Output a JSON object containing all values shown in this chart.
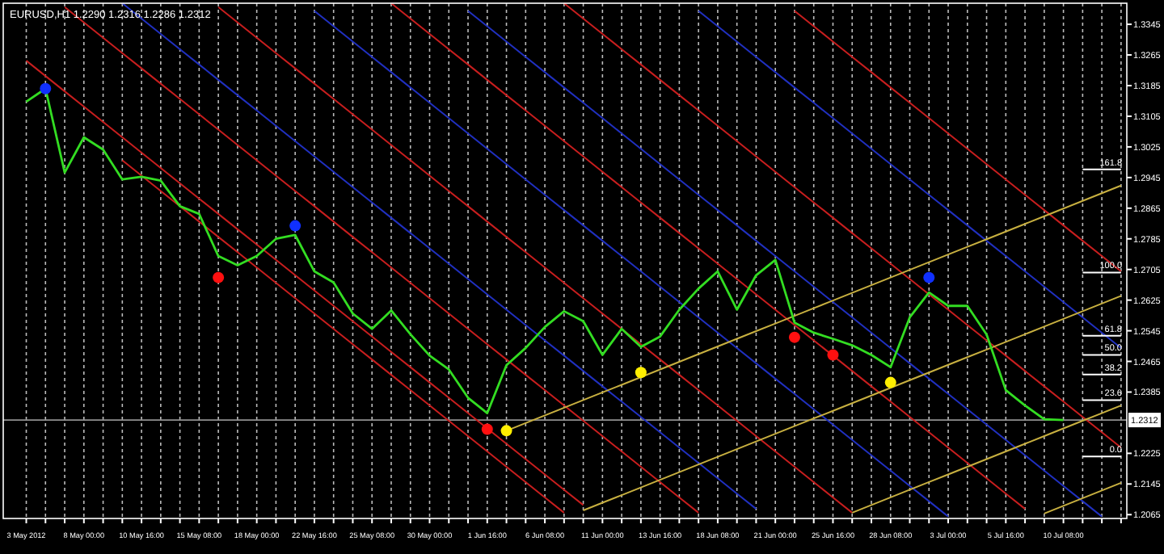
{
  "chart_data": {
    "type": "line",
    "title": "EURUSD,H1  1.2290 1.2316 1.2286 1.2312",
    "ylim": [
      1.2055,
      1.34
    ],
    "categories": [
      "3 May 2012",
      null,
      null,
      "8 May 00:00",
      null,
      null,
      "10 May 16:00",
      null,
      null,
      "15 May 08:00",
      null,
      null,
      "18 May 00:00",
      null,
      null,
      "22 May 16:00",
      null,
      null,
      "25 May 08:00",
      null,
      null,
      "30 May 00:00",
      null,
      null,
      "1 Jun 16:00",
      null,
      null,
      "6 Jun 08:00",
      null,
      null,
      "11 Jun 00:00",
      null,
      null,
      "13 Jun 16:00",
      null,
      null,
      "18 Jun 08:00",
      null,
      null,
      "21 Jun 00:00",
      null,
      null,
      "25 Jun 16:00",
      null,
      null,
      "28 Jun 08:00",
      null,
      null,
      "3 Jul 00:00",
      null,
      null,
      "5 Jul 16:00",
      null,
      null,
      "10 Jul 08:00",
      null,
      null,
      null
    ],
    "yticks": [
      1.2065,
      1.2145,
      1.2225,
      1.2385,
      1.2465,
      1.2545,
      1.2625,
      1.2705,
      1.2785,
      1.2865,
      1.2945,
      1.3025,
      1.3105,
      1.3185,
      1.3265,
      1.3345
    ],
    "grid": "x",
    "series": [
      {
        "color": "#33dd22",
        "values": [
          1.3143,
          1.3177,
          1.2958,
          1.305,
          1.3018,
          1.294,
          1.2947,
          1.2937,
          1.287,
          1.285,
          1.274,
          1.2716,
          1.274,
          1.2785,
          1.2795,
          1.27,
          1.2671,
          1.259,
          1.255,
          1.2598,
          1.2536,
          1.248,
          1.2444,
          1.237,
          1.233,
          1.2455,
          1.25,
          1.2555,
          1.2596,
          1.257,
          1.2482,
          1.255,
          1.2503,
          1.253,
          1.26,
          1.2655,
          1.27,
          1.26,
          1.269,
          1.273,
          1.2566,
          1.254,
          1.2524,
          1.2507,
          1.2482,
          1.245,
          1.258,
          1.2645,
          1.261,
          1.261,
          1.2535,
          1.239,
          1.235,
          1.2314,
          1.2312,
          null,
          null,
          null
        ]
      },
      {
        "color": "#c81e1e",
        "values": [
          1.325,
          1.321,
          1.317,
          1.313,
          1.309,
          1.305,
          1.301,
          1.297,
          1.293,
          1.289,
          1.285,
          1.281,
          1.277,
          1.273,
          1.269,
          1.265,
          1.261,
          1.257,
          1.253,
          1.249,
          1.245,
          1.241,
          1.237,
          1.233,
          1.229,
          1.225,
          1.221,
          1.217,
          1.213,
          1.209,
          null,
          null,
          null,
          null,
          null,
          null,
          null,
          null,
          null,
          null,
          null,
          null,
          null,
          null,
          null,
          null,
          null,
          null,
          null,
          null,
          null,
          null,
          null,
          null,
          null,
          null,
          null,
          null
        ]
      },
      {
        "color": "#c81e1e",
        "values": [
          null,
          null,
          null,
          null,
          null,
          1.299,
          1.295,
          1.291,
          1.287,
          1.283,
          1.279,
          1.275,
          1.271,
          1.267,
          1.263,
          1.259,
          1.255,
          1.251,
          1.247,
          1.243,
          1.239,
          1.235,
          1.231,
          1.227,
          1.223,
          1.219,
          1.215,
          1.211,
          1.207,
          null,
          null,
          null,
          null,
          null,
          null,
          null,
          null,
          null,
          null,
          null,
          null,
          null,
          null,
          null,
          null,
          null,
          null,
          null,
          null,
          null,
          null,
          null,
          null,
          null,
          null,
          null,
          null,
          null
        ]
      },
      {
        "color": "#c81e1e",
        "values": [
          null,
          null,
          1.339,
          1.335,
          1.331,
          1.327,
          1.323,
          1.319,
          1.315,
          1.311,
          1.307,
          1.303,
          1.299,
          1.295,
          1.291,
          1.287,
          1.283,
          1.279,
          1.275,
          1.271,
          1.267,
          1.263,
          1.259,
          1.255,
          1.251,
          1.247,
          1.243,
          1.239,
          1.235,
          1.231,
          1.227,
          1.223,
          1.219,
          1.215,
          1.211,
          1.207,
          null,
          null,
          null,
          null,
          null,
          null,
          null,
          null,
          null,
          null,
          null,
          null,
          null,
          null,
          null,
          null,
          null,
          null,
          null,
          null,
          null,
          null
        ]
      },
      {
        "color": "#2030c0",
        "values": [
          null,
          null,
          null,
          null,
          null,
          1.34,
          1.336,
          1.332,
          1.328,
          1.324,
          1.32,
          1.316,
          1.312,
          1.308,
          1.304,
          1.3,
          1.296,
          1.292,
          1.288,
          1.284,
          1.28,
          1.276,
          1.272,
          1.268,
          1.264,
          1.26,
          1.256,
          1.252,
          1.248,
          1.244,
          1.24,
          1.236,
          1.232,
          1.228,
          1.224,
          1.22,
          1.216,
          1.212,
          1.208,
          null,
          null,
          null,
          null,
          null,
          null,
          null,
          null,
          null,
          null,
          null,
          null,
          null,
          null,
          null,
          null,
          null,
          null,
          null
        ]
      },
      {
        "color": "#c81e1e",
        "values": [
          null,
          null,
          null,
          null,
          null,
          null,
          null,
          null,
          null,
          null,
          1.339,
          1.335,
          1.331,
          1.327,
          1.323,
          1.319,
          1.315,
          1.311,
          1.307,
          1.303,
          1.299,
          1.295,
          1.291,
          1.287,
          1.283,
          1.279,
          1.275,
          1.271,
          1.267,
          1.263,
          1.259,
          1.255,
          1.251,
          1.247,
          1.243,
          1.239,
          1.235,
          1.231,
          1.227,
          1.223,
          1.219,
          1.215,
          1.211,
          1.207,
          null,
          null,
          null,
          null,
          null,
          null,
          null,
          null,
          null,
          null,
          null,
          null,
          null,
          null
        ]
      },
      {
        "color": "#2030c0",
        "values": [
          null,
          null,
          null,
          null,
          null,
          null,
          null,
          null,
          null,
          null,
          null,
          null,
          null,
          null,
          null,
          1.338,
          1.334,
          1.33,
          1.326,
          1.322,
          1.318,
          1.314,
          1.31,
          1.306,
          1.302,
          1.298,
          1.294,
          1.29,
          1.286,
          1.282,
          1.278,
          1.274,
          1.27,
          1.266,
          1.262,
          1.258,
          1.254,
          1.25,
          1.246,
          1.242,
          1.238,
          1.234,
          1.23,
          1.226,
          1.222,
          1.218,
          1.214,
          1.21,
          1.206,
          null,
          null,
          null,
          null,
          null,
          null,
          null,
          null,
          null
        ]
      },
      {
        "color": "#c81e1e",
        "values": [
          null,
          null,
          null,
          null,
          null,
          null,
          null,
          null,
          null,
          null,
          null,
          null,
          null,
          null,
          null,
          null,
          null,
          null,
          null,
          1.34,
          1.336,
          1.332,
          1.328,
          1.324,
          1.32,
          1.316,
          1.312,
          1.308,
          1.304,
          1.3,
          1.296,
          1.292,
          1.288,
          1.284,
          1.28,
          1.276,
          1.272,
          1.268,
          1.264,
          1.26,
          1.256,
          1.252,
          1.248,
          1.244,
          1.24,
          1.236,
          1.232,
          1.228,
          1.224,
          1.22,
          1.216,
          1.212,
          1.208,
          null,
          null,
          null,
          null,
          null
        ]
      },
      {
        "color": "#2030c0",
        "values": [
          null,
          null,
          null,
          null,
          null,
          null,
          null,
          null,
          null,
          null,
          null,
          null,
          null,
          null,
          null,
          null,
          null,
          null,
          null,
          null,
          null,
          null,
          null,
          1.338,
          1.334,
          1.33,
          1.326,
          1.322,
          1.318,
          1.314,
          1.31,
          1.306,
          1.302,
          1.298,
          1.294,
          1.29,
          1.286,
          1.282,
          1.278,
          1.274,
          1.27,
          1.266,
          1.262,
          1.258,
          1.254,
          1.25,
          1.246,
          1.242,
          1.238,
          1.234,
          1.23,
          1.226,
          1.222,
          1.218,
          1.214,
          1.21,
          1.206,
          null
        ]
      },
      {
        "color": "#c81e1e",
        "values": [
          null,
          null,
          null,
          null,
          null,
          null,
          null,
          null,
          null,
          null,
          null,
          null,
          null,
          null,
          null,
          null,
          null,
          null,
          null,
          null,
          null,
          null,
          null,
          null,
          null,
          null,
          null,
          null,
          1.34,
          1.336,
          1.332,
          1.328,
          1.324,
          1.32,
          1.316,
          1.312,
          1.308,
          1.304,
          1.3,
          1.296,
          1.292,
          1.288,
          1.284,
          1.28,
          1.276,
          1.272,
          1.268,
          1.264,
          1.26,
          1.256,
          1.252,
          1.248,
          1.244,
          1.24,
          1.236,
          1.232,
          1.228,
          1.224
        ]
      },
      {
        "color": "#2030c0",
        "values": [
          null,
          null,
          null,
          null,
          null,
          null,
          null,
          null,
          null,
          null,
          null,
          null,
          null,
          null,
          null,
          null,
          null,
          null,
          null,
          null,
          null,
          null,
          null,
          null,
          null,
          null,
          null,
          null,
          null,
          null,
          null,
          null,
          null,
          null,
          null,
          1.338,
          1.334,
          1.33,
          1.326,
          1.322,
          1.318,
          1.314,
          1.31,
          1.306,
          1.302,
          1.298,
          1.294,
          1.29,
          1.286,
          1.282,
          1.278,
          1.274,
          1.27,
          1.266,
          1.262,
          1.258,
          1.254,
          1.25
        ]
      },
      {
        "color": "#c81e1e",
        "values": [
          null,
          null,
          null,
          null,
          null,
          null,
          null,
          null,
          null,
          null,
          null,
          null,
          null,
          null,
          null,
          null,
          null,
          null,
          null,
          null,
          null,
          null,
          null,
          null,
          null,
          null,
          null,
          null,
          null,
          null,
          null,
          null,
          null,
          null,
          null,
          null,
          null,
          null,
          null,
          null,
          1.338,
          1.334,
          1.33,
          1.326,
          1.322,
          1.318,
          1.314,
          1.31,
          1.306,
          1.302,
          1.298,
          1.294,
          1.29,
          1.286,
          1.282,
          1.278,
          1.274,
          1.27
        ]
      },
      {
        "color": "#c8b040",
        "values": [
          null,
          null,
          null,
          null,
          null,
          null,
          null,
          null,
          null,
          null,
          null,
          null,
          null,
          null,
          null,
          null,
          null,
          null,
          null,
          null,
          null,
          null,
          null,
          null,
          null,
          1.2284,
          1.2304,
          1.2324,
          1.2344,
          1.2364,
          1.2384,
          1.2404,
          1.2424,
          1.2444,
          1.2464,
          1.2484,
          1.2504,
          1.2524,
          1.2544,
          1.2564,
          1.2584,
          1.2604,
          1.2624,
          1.2644,
          1.2664,
          1.2684,
          1.2704,
          1.2724,
          1.2744,
          1.2764,
          1.2784,
          1.2804,
          1.2824,
          1.2844,
          1.2864,
          1.2884,
          1.2904,
          1.2924
        ]
      },
      {
        "color": "#c8b040",
        "values": [
          null,
          null,
          null,
          null,
          null,
          null,
          null,
          null,
          null,
          null,
          null,
          null,
          null,
          null,
          null,
          null,
          null,
          null,
          null,
          null,
          null,
          null,
          null,
          null,
          null,
          null,
          null,
          null,
          null,
          1.2076,
          1.2096,
          1.2116,
          1.2136,
          1.2156,
          1.2176,
          1.2196,
          1.2216,
          1.2236,
          1.2256,
          1.2276,
          1.2296,
          1.2316,
          1.2336,
          1.2356,
          1.2376,
          1.2396,
          1.2416,
          1.2436,
          1.2456,
          1.2476,
          1.2496,
          1.2516,
          1.2536,
          1.2556,
          1.2576,
          1.2596,
          1.2616,
          1.2636
        ]
      },
      {
        "color": "#c8b040",
        "values": [
          null,
          null,
          null,
          null,
          null,
          null,
          null,
          null,
          null,
          null,
          null,
          null,
          null,
          null,
          null,
          null,
          null,
          null,
          null,
          null,
          null,
          null,
          null,
          null,
          null,
          null,
          null,
          null,
          null,
          null,
          null,
          null,
          null,
          null,
          null,
          null,
          null,
          null,
          null,
          null,
          null,
          null,
          null,
          1.207,
          1.209,
          1.211,
          1.213,
          1.215,
          1.217,
          1.219,
          1.221,
          1.223,
          1.225,
          1.227,
          1.229,
          1.231,
          1.233,
          1.235
        ]
      },
      {
        "color": "#c8b040",
        "values": [
          null,
          null,
          null,
          null,
          null,
          null,
          null,
          null,
          null,
          null,
          null,
          null,
          null,
          null,
          null,
          null,
          null,
          null,
          null,
          null,
          null,
          null,
          null,
          null,
          null,
          null,
          null,
          null,
          null,
          null,
          null,
          null,
          null,
          null,
          null,
          null,
          null,
          null,
          null,
          null,
          null,
          null,
          null,
          null,
          null,
          null,
          null,
          null,
          null,
          null,
          null,
          null,
          null,
          1.2068,
          1.2088,
          1.2108,
          1.2128,
          1.2148
        ]
      },
      {
        "color": "#ffffff",
        "values": [
          null,
          null,
          null,
          null,
          null,
          null,
          null,
          null,
          null,
          null,
          null,
          null,
          null,
          null,
          null,
          null,
          null,
          null,
          null,
          null,
          null,
          null,
          null,
          null,
          null,
          null,
          null,
          null,
          null,
          null,
          null,
          null,
          null,
          null,
          null,
          null,
          null,
          null,
          null,
          null,
          null,
          null,
          null,
          null,
          null,
          null,
          null,
          null,
          null,
          null,
          null,
          null,
          null,
          null,
          null,
          1.2966,
          1.2966,
          1.2966
        ]
      },
      {
        "color": "#ffffff",
        "values": [
          null,
          null,
          null,
          null,
          null,
          null,
          null,
          null,
          null,
          null,
          null,
          null,
          null,
          null,
          null,
          null,
          null,
          null,
          null,
          null,
          null,
          null,
          null,
          null,
          null,
          null,
          null,
          null,
          null,
          null,
          null,
          null,
          null,
          null,
          null,
          null,
          null,
          null,
          null,
          null,
          null,
          null,
          null,
          null,
          null,
          null,
          null,
          null,
          null,
          null,
          null,
          null,
          null,
          null,
          null,
          1.2697,
          1.2697,
          1.2697
        ]
      },
      {
        "color": "#ffffff",
        "values": [
          null,
          null,
          null,
          null,
          null,
          null,
          null,
          null,
          null,
          null,
          null,
          null,
          null,
          null,
          null,
          null,
          null,
          null,
          null,
          null,
          null,
          null,
          null,
          null,
          null,
          null,
          null,
          null,
          null,
          null,
          null,
          null,
          null,
          null,
          null,
          null,
          null,
          null,
          null,
          null,
          null,
          null,
          null,
          null,
          null,
          null,
          null,
          null,
          null,
          null,
          null,
          null,
          null,
          null,
          null,
          1.2532,
          1.2532,
          1.2532
        ]
      },
      {
        "color": "#ffffff",
        "values": [
          null,
          null,
          null,
          null,
          null,
          null,
          null,
          null,
          null,
          null,
          null,
          null,
          null,
          null,
          null,
          null,
          null,
          null,
          null,
          null,
          null,
          null,
          null,
          null,
          null,
          null,
          null,
          null,
          null,
          null,
          null,
          null,
          null,
          null,
          null,
          null,
          null,
          null,
          null,
          null,
          null,
          null,
          null,
          null,
          null,
          null,
          null,
          null,
          null,
          null,
          null,
          null,
          null,
          null,
          null,
          1.2482,
          1.2482,
          1.2482
        ]
      },
      {
        "color": "#ffffff",
        "values": [
          null,
          null,
          null,
          null,
          null,
          null,
          null,
          null,
          null,
          null,
          null,
          null,
          null,
          null,
          null,
          null,
          null,
          null,
          null,
          null,
          null,
          null,
          null,
          null,
          null,
          null,
          null,
          null,
          null,
          null,
          null,
          null,
          null,
          null,
          null,
          null,
          null,
          null,
          null,
          null,
          null,
          null,
          null,
          null,
          null,
          null,
          null,
          null,
          null,
          null,
          null,
          null,
          null,
          null,
          null,
          1.2431,
          1.2431,
          1.2431
        ]
      },
      {
        "color": "#ffffff",
        "values": [
          null,
          null,
          null,
          null,
          null,
          null,
          null,
          null,
          null,
          null,
          null,
          null,
          null,
          null,
          null,
          null,
          null,
          null,
          null,
          null,
          null,
          null,
          null,
          null,
          null,
          null,
          null,
          null,
          null,
          null,
          null,
          null,
          null,
          null,
          null,
          null,
          null,
          null,
          null,
          null,
          null,
          null,
          null,
          null,
          null,
          null,
          null,
          null,
          null,
          null,
          null,
          null,
          null,
          null,
          null,
          1.2364,
          1.2364,
          1.2364
        ]
      },
      {
        "color": "#ffffff",
        "values": [
          null,
          null,
          null,
          null,
          null,
          null,
          null,
          null,
          null,
          null,
          null,
          null,
          null,
          null,
          null,
          null,
          null,
          null,
          null,
          null,
          null,
          null,
          null,
          null,
          null,
          null,
          null,
          null,
          null,
          null,
          null,
          null,
          null,
          null,
          null,
          null,
          null,
          null,
          null,
          null,
          null,
          null,
          null,
          null,
          null,
          null,
          null,
          null,
          null,
          null,
          null,
          null,
          null,
          null,
          null,
          1.2217,
          1.2217,
          1.2217
        ]
      },
      {
        "type": "scatter",
        "marker": "circle",
        "color": "#1030ff",
        "values": [
          null,
          1.3177,
          null,
          null,
          null,
          null,
          null,
          null,
          null,
          null,
          null,
          null,
          null,
          null,
          1.2819,
          null,
          null,
          null,
          null,
          null,
          null,
          null,
          null,
          null,
          null,
          null,
          null,
          null,
          null,
          null,
          null,
          null,
          null,
          null,
          null,
          null,
          null,
          null,
          null,
          null,
          null,
          null,
          null,
          null,
          null,
          null,
          null,
          1.2684,
          null,
          null,
          null,
          null,
          null,
          null,
          null,
          null,
          null,
          null
        ]
      },
      {
        "type": "scatter",
        "marker": "circle",
        "color": "#ff1010",
        "values": [
          null,
          null,
          null,
          null,
          null,
          null,
          null,
          null,
          null,
          null,
          1.2684,
          null,
          null,
          null,
          null,
          null,
          null,
          null,
          null,
          null,
          null,
          null,
          null,
          null,
          1.2288,
          null,
          null,
          null,
          null,
          null,
          null,
          null,
          null,
          null,
          null,
          null,
          null,
          null,
          null,
          null,
          1.2528,
          null,
          1.2482,
          null,
          null,
          null,
          null,
          null,
          null,
          null,
          null,
          null,
          null,
          null,
          null,
          null,
          null,
          null
        ]
      },
      {
        "type": "scatter",
        "marker": "circle",
        "color": "#ffee00",
        "values": [
          null,
          null,
          null,
          null,
          null,
          null,
          null,
          null,
          null,
          null,
          null,
          null,
          null,
          null,
          null,
          null,
          null,
          null,
          null,
          null,
          null,
          null,
          null,
          null,
          null,
          1.2284,
          null,
          null,
          null,
          null,
          null,
          null,
          1.2436,
          null,
          null,
          null,
          null,
          null,
          null,
          null,
          null,
          null,
          null,
          null,
          null,
          1.241,
          null,
          null,
          null,
          null,
          null,
          null,
          null,
          null,
          null,
          null,
          null,
          null
        ]
      }
    ],
    "ref_lines": [
      {
        "axis": "y",
        "value": 1.2312,
        "label": "1.2312",
        "color": "#909090"
      }
    ],
    "annotations": [
      {
        "text": "161.8",
        "y": 1.2966
      },
      {
        "text": "100.0",
        "y": 1.2697
      },
      {
        "text": "61.8",
        "y": 1.2532
      },
      {
        "text": "50.0",
        "y": 1.2482
      },
      {
        "text": "38.2",
        "y": 1.2431
      },
      {
        "text": "23.6",
        "y": 1.2364
      },
      {
        "text": "0.0",
        "y": 1.2217
      }
    ]
  }
}
